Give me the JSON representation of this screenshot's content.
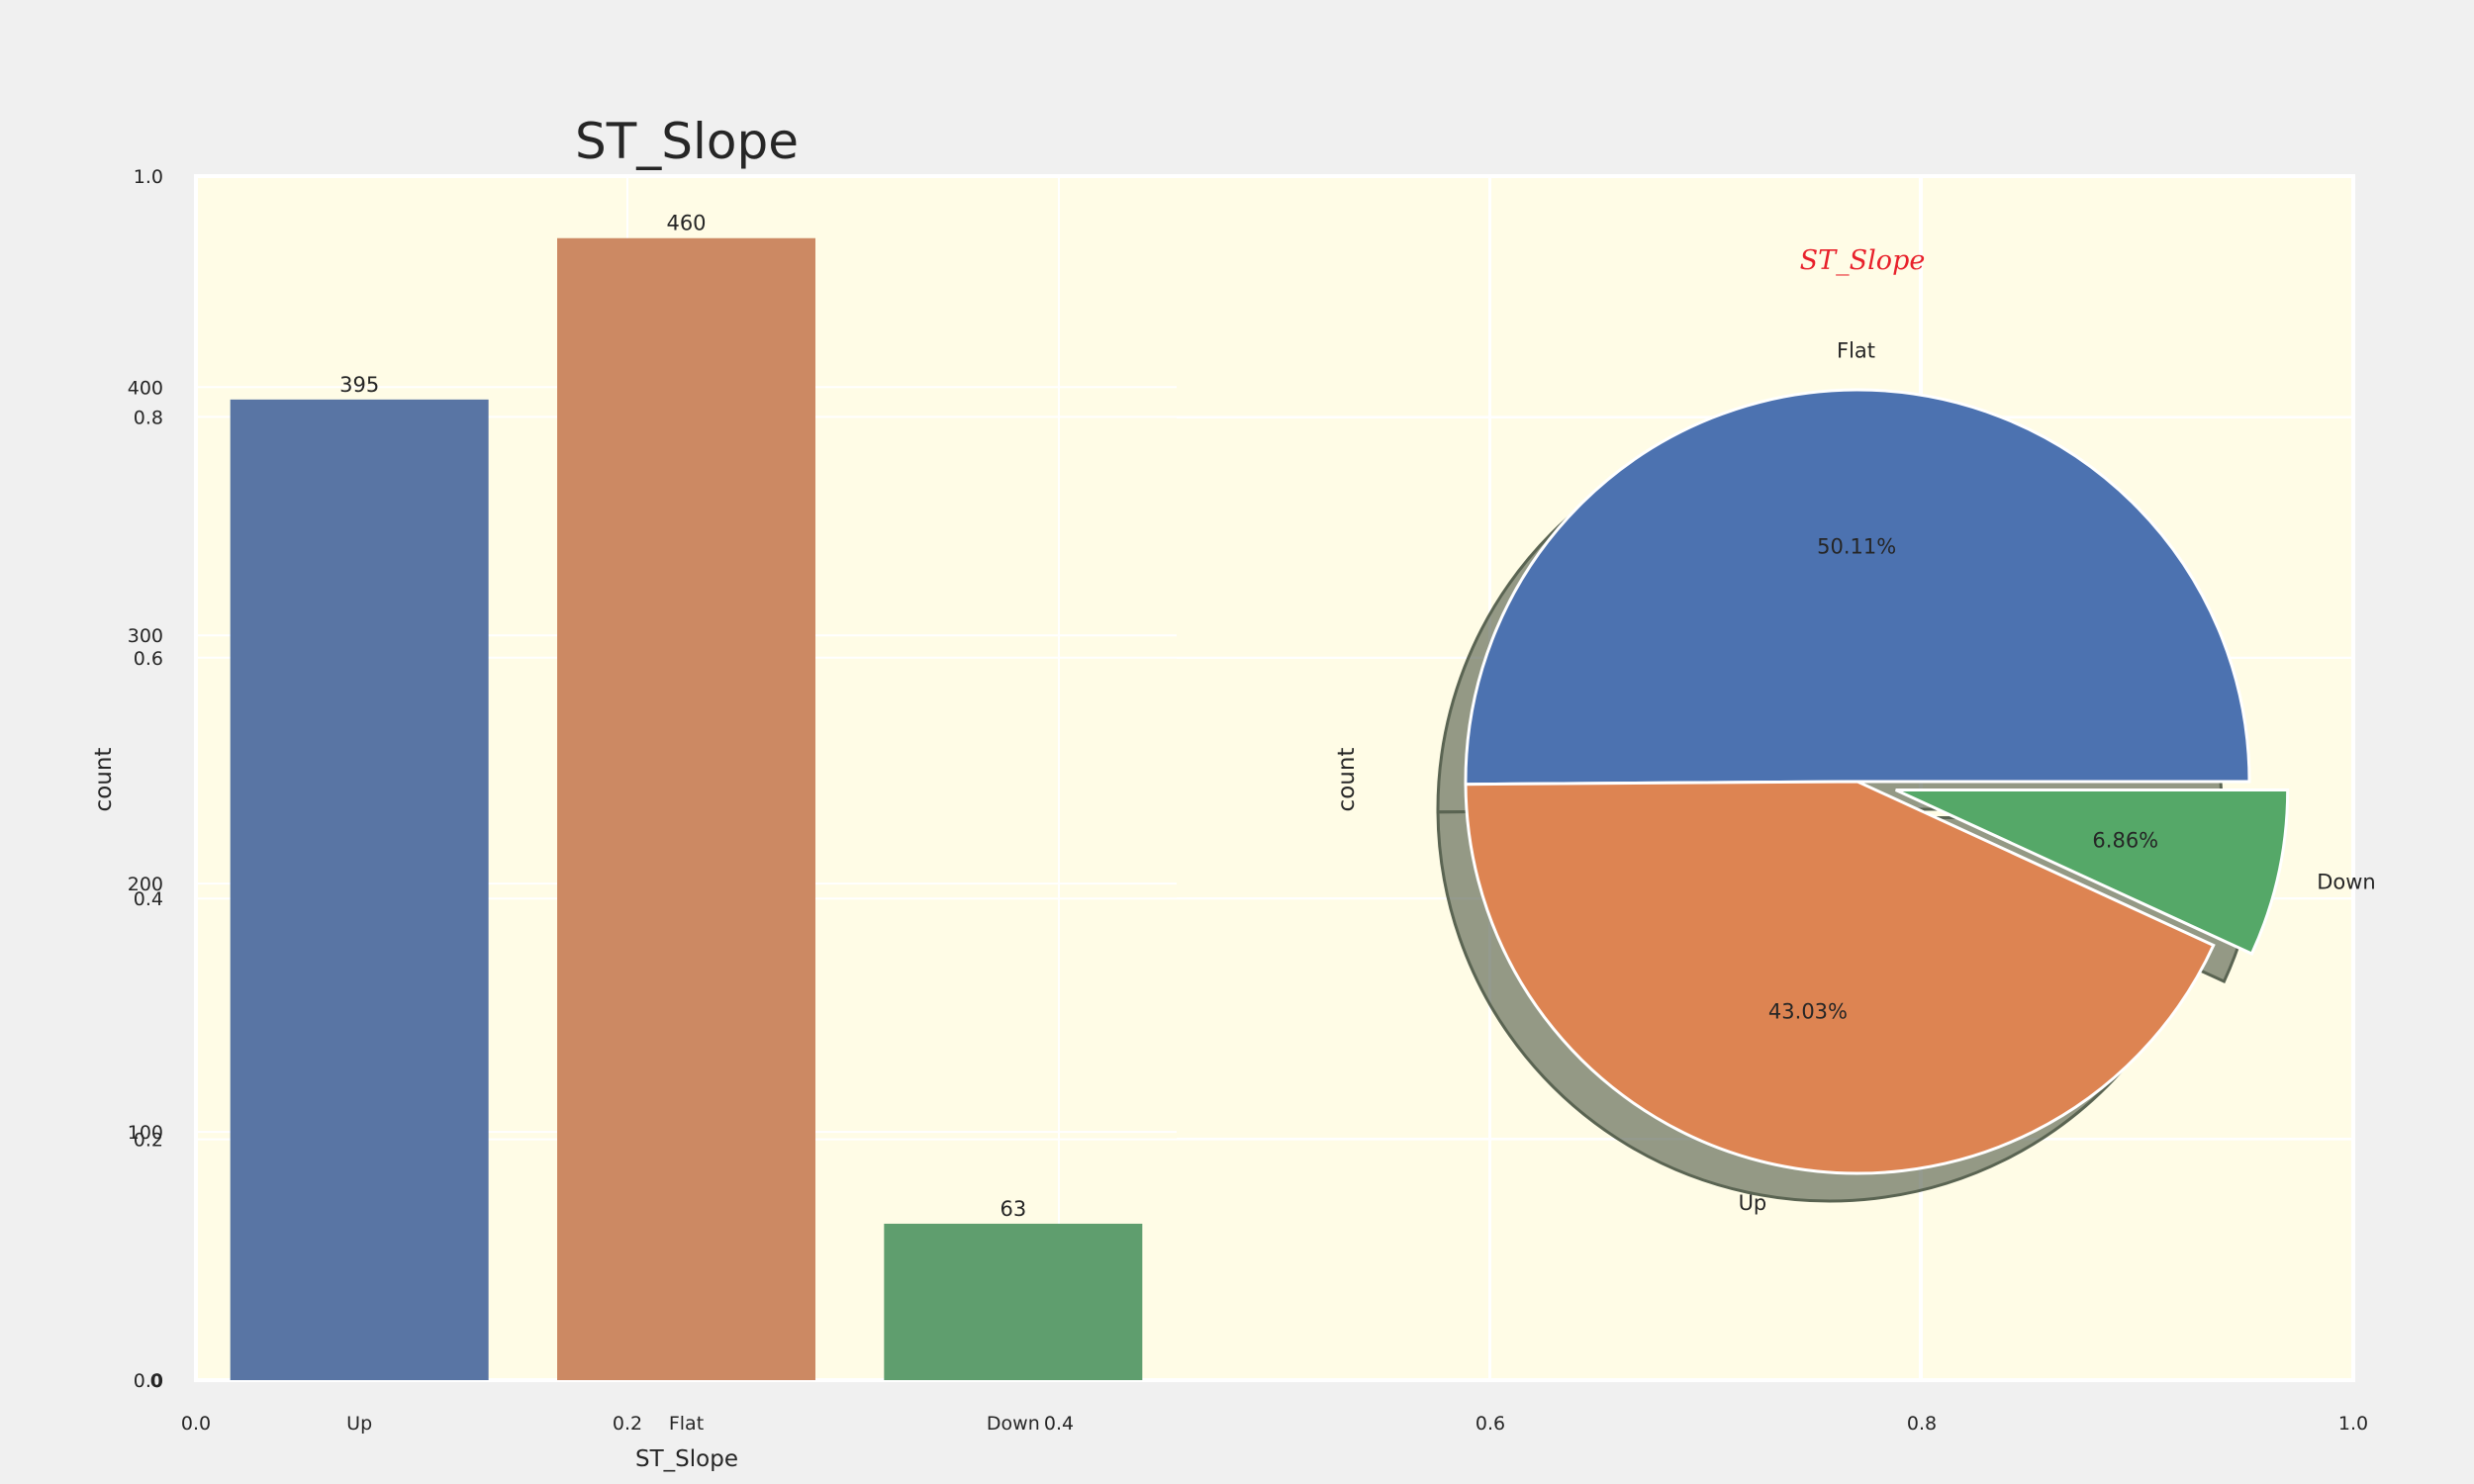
{
  "chart_data": [
    {
      "type": "bar",
      "title": "ST_Slope",
      "xlabel": "ST_Slope",
      "ylabel": "count",
      "categories": [
        "Up",
        "Flat",
        "Down"
      ],
      "values": [
        395,
        460,
        63
      ],
      "value_labels": [
        "395",
        "460",
        "63"
      ],
      "colors": [
        "#5975a4",
        "#cc8963",
        "#5f9e6e"
      ],
      "ylim": [
        0,
        485
      ],
      "yticks": [
        "0",
        "100",
        "200",
        "300",
        "400"
      ],
      "ytick_values": [
        0,
        100,
        200,
        300,
        400
      ],
      "grid": true
    },
    {
      "type": "pie",
      "title": "ST_Slope",
      "ylabel": "count",
      "labels": [
        "Flat",
        "Up",
        "Down"
      ],
      "values": [
        460,
        395,
        63
      ],
      "percent_labels": [
        "50.11%",
        "43.03%",
        "6.86%"
      ],
      "colors": [
        "#4c72b0",
        "#dd8452",
        "#55a868"
      ],
      "exploded": [
        false,
        false,
        true
      ],
      "shadow": true
    }
  ],
  "background_axes": {
    "xticks": [
      "0.0",
      "0.2",
      "0.4",
      "0.6",
      "0.8",
      "1.0"
    ],
    "yticks": [
      "0.0",
      "0.2",
      "0.4",
      "0.6",
      "0.8",
      "1.0"
    ]
  },
  "colors": {
    "plot_background": "#fffce6",
    "figure_background": "#f0f0f0",
    "grid": "#ffffff",
    "pie_title": "#e8212b",
    "shadow": "#5a6452"
  }
}
